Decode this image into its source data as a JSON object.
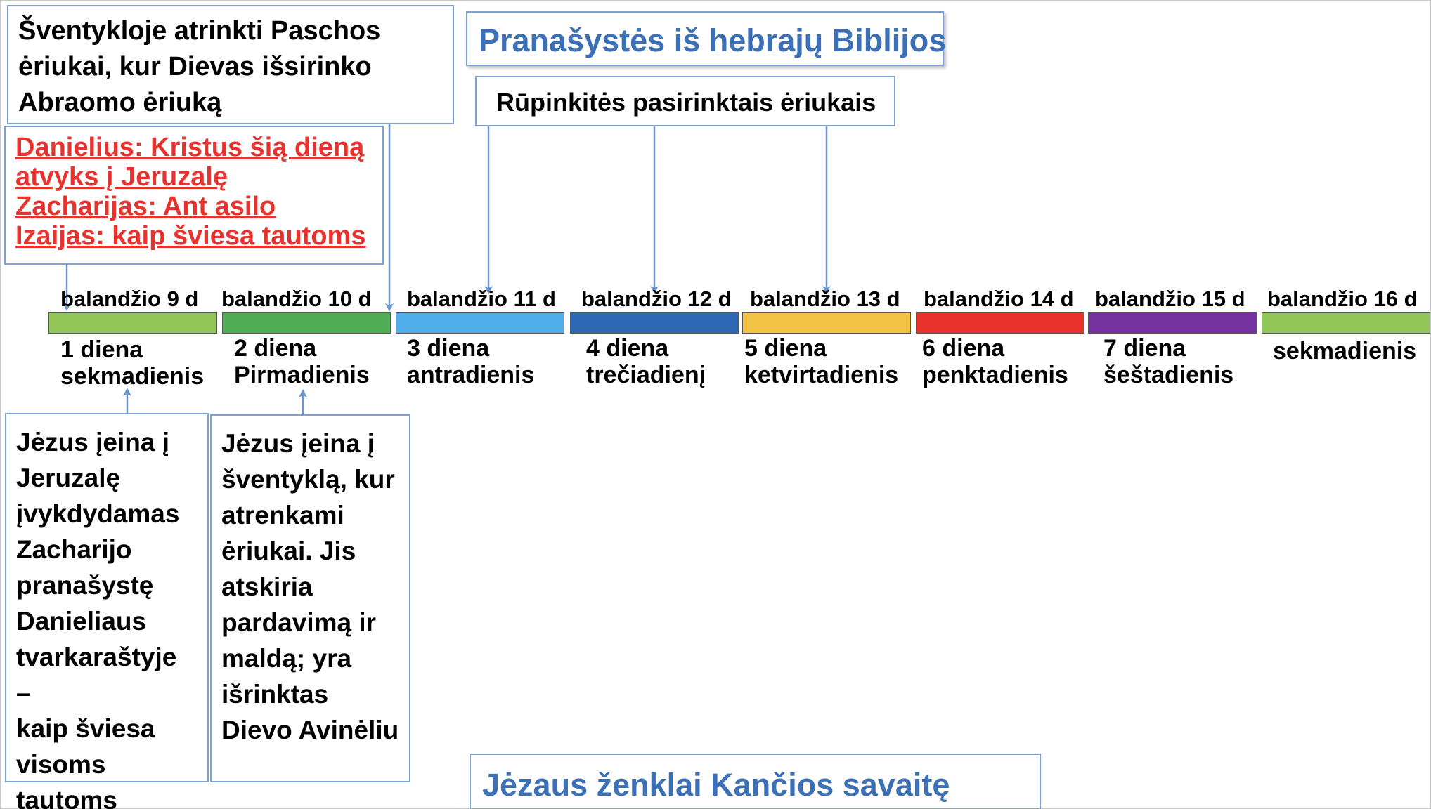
{
  "colors": {
    "title_blue": "#3b6fb6",
    "prophecy_red": "#e8322d",
    "box_border": "#7da2d2",
    "arrow": "#6b96cf"
  },
  "temple_note": {
    "lines": [
      "Šventykloje atrinkti Paschos",
      "ėriukai, kur Dievas išsirinko",
      "Abraomo ėriuką"
    ]
  },
  "prophecy_note": {
    "lines": [
      "Danielius: Kristus šią dieną",
      "atvyks į Jeruzalę",
      "Zacharijas: Ant asilo",
      "Izaijas: kaip šviesa tautoms"
    ]
  },
  "title_top": "Pranašystės iš hebrajų Biblijos",
  "lambs_note": "Rūpinkitės pasirinktais ėriukais",
  "title_bottom": "Jėzaus ženklai Kančios savaitę",
  "days": [
    {
      "date": "balandžio 9 d",
      "line1": "1 diena",
      "line2": "sekmadienis",
      "color": "#93c659"
    },
    {
      "date": "balandžio 10 d",
      "line1": "2 diena",
      "line2": "Pirmadienis",
      "color": "#4fad55"
    },
    {
      "date": "balandžio 11 d",
      "line1": "3 diena",
      "line2": "antradienis",
      "color": "#4faeea"
    },
    {
      "date": "balandžio 12 d",
      "line1": "4 diena",
      "line2": "trečiadienį",
      "color": "#2e67b4"
    },
    {
      "date": "balandžio 13 d",
      "line1": "5 diena",
      "line2": "ketvirtadienis",
      "color": "#f2c342"
    },
    {
      "date": "balandžio 14 d",
      "line1": "6 diena",
      "line2": "penktadienis",
      "color": "#e8322d"
    },
    {
      "date": "balandžio 15 d",
      "line1": "7 diena",
      "line2": "šeštadienis",
      "color": "#7431a0"
    },
    {
      "date": "balandžio 16 d",
      "line1": "",
      "line2": "sekmadienis",
      "color": "#93c659"
    }
  ],
  "events": [
    {
      "lines": [
        "Jėzus įeina į",
        "Jeruzalę",
        "įvykdydamas",
        "Zacharijo",
        "pranašystę",
        "Danieliaus",
        "tvarkaraštyje –",
        "kaip šviesa",
        "visoms",
        "tautoms"
      ]
    },
    {
      "lines": [
        "Jėzus įeina į",
        "šventyklą, kur",
        "atrenkami",
        "ėriukai. Jis",
        "atskiria",
        "pardavimą ir",
        "maldą; yra",
        "išrinktas",
        "Dievo Avinėliu"
      ]
    }
  ]
}
